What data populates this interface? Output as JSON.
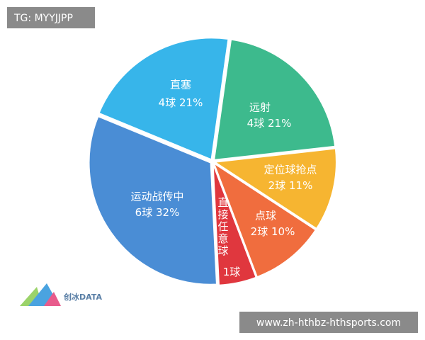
{
  "watermark_top": "TG: MYYJJPP",
  "watermark_bottom": "www.zh-hthbz-hthsports.com",
  "logo_text": "创冰DATA",
  "chart_data": {
    "type": "pie",
    "categories": [
      "远射",
      "定位球抢点",
      "点球",
      "直接任意球",
      "运动战传中",
      "直塞"
    ],
    "goals": [
      4,
      2,
      2,
      1,
      6,
      4
    ],
    "goal_labels": [
      "4球",
      "2球",
      "2球",
      "1球",
      "6球",
      "4球"
    ],
    "values": [
      21,
      11,
      10,
      5,
      32,
      21
    ],
    "value_labels": [
      "21%",
      "11%",
      "10%",
      null,
      "32%",
      "21%"
    ],
    "colors": [
      "#3dba8d",
      "#f6b531",
      "#f06d3e",
      "#e0373e",
      "#4a8dd5",
      "#37b5ea"
    ]
  }
}
